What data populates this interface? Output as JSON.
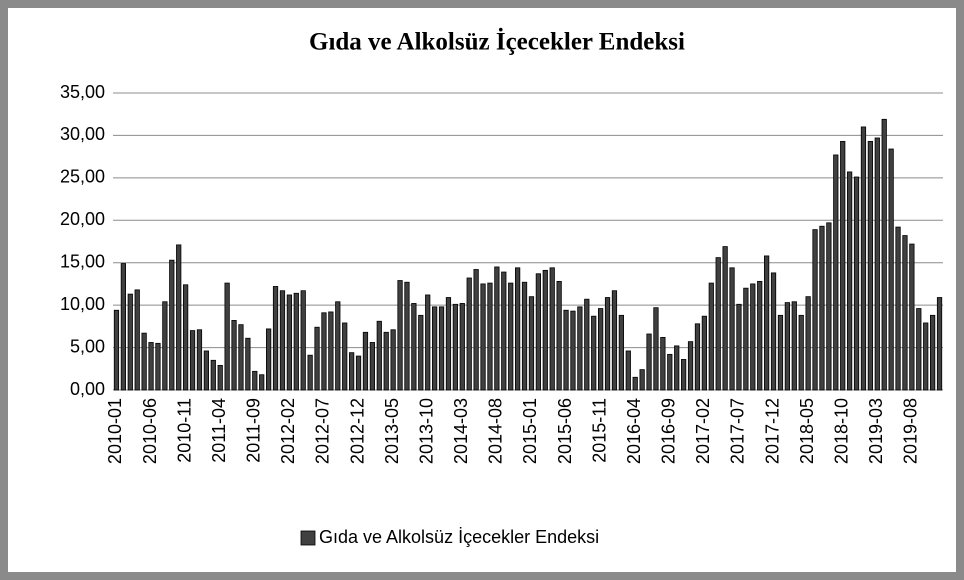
{
  "chart_data": {
    "type": "bar",
    "title": "Gıda ve Alkolsüz İçecekler Endeksi",
    "categories": [
      "2010-01",
      null,
      null,
      null,
      null,
      "2010-06",
      null,
      null,
      null,
      null,
      "2010-11",
      null,
      null,
      null,
      null,
      "2011-04",
      null,
      null,
      null,
      null,
      "2011-09",
      null,
      null,
      null,
      null,
      "2012-02",
      null,
      null,
      null,
      null,
      "2012-07",
      null,
      null,
      null,
      null,
      "2012-12",
      null,
      null,
      null,
      null,
      "2013-05",
      null,
      null,
      null,
      null,
      "2013-10",
      null,
      null,
      null,
      null,
      "2014-03",
      null,
      null,
      null,
      null,
      "2014-08",
      null,
      null,
      null,
      null,
      "2015-01",
      null,
      null,
      null,
      null,
      "2015-06",
      null,
      null,
      null,
      null,
      "2015-11",
      null,
      null,
      null,
      null,
      "2016-04",
      null,
      null,
      null,
      null,
      "2016-09",
      null,
      null,
      null,
      null,
      "2017-02",
      null,
      null,
      null,
      null,
      "2017-07",
      null,
      null,
      null,
      null,
      "2017-12",
      null,
      null,
      null,
      null,
      "2018-05",
      null,
      null,
      null,
      null,
      "2018-10",
      null,
      null,
      null,
      null,
      "2019-03",
      null,
      null,
      null,
      null,
      "2019-08",
      null,
      null,
      null,
      null
    ],
    "series": [
      {
        "name": "Gıda ve Alkolsüz İçecekler Endeksi",
        "color": "#404040",
        "values": [
          9.4,
          14.9,
          11.3,
          11.8,
          6.7,
          5.6,
          5.5,
          10.4,
          15.3,
          17.1,
          12.4,
          7.0,
          7.1,
          4.6,
          3.5,
          2.9,
          12.6,
          8.2,
          7.7,
          6.1,
          2.2,
          1.8,
          7.2,
          12.2,
          11.7,
          11.2,
          11.4,
          11.7,
          4.1,
          7.4,
          9.1,
          9.2,
          10.4,
          7.9,
          4.4,
          4.0,
          6.8,
          5.6,
          8.1,
          6.8,
          7.1,
          12.9,
          12.7,
          10.2,
          8.8,
          11.2,
          9.8,
          9.8,
          10.9,
          10.1,
          10.2,
          13.2,
          14.2,
          12.5,
          12.6,
          14.5,
          13.9,
          12.6,
          14.4,
          12.7,
          11.0,
          13.7,
          14.1,
          14.4,
          12.8,
          9.4,
          9.3,
          9.8,
          10.7,
          8.7,
          9.6,
          10.9,
          11.7,
          8.8,
          4.6,
          1.5,
          2.4,
          6.6,
          9.7,
          6.2,
          4.2,
          5.2,
          3.6,
          5.7,
          7.8,
          8.7,
          12.6,
          15.6,
          16.9,
          14.4,
          10.1,
          12.0,
          12.5,
          12.8,
          15.8,
          13.8,
          8.8,
          10.3,
          10.4,
          8.8,
          11.0,
          18.9,
          19.3,
          19.7,
          27.7,
          29.3,
          25.7,
          25.1,
          31.0,
          29.3,
          29.7,
          31.9,
          28.4,
          19.2,
          18.2,
          17.2,
          9.6,
          7.9,
          8.8,
          10.9
        ]
      }
    ],
    "ylim": [
      0,
      35
    ],
    "yticks": [
      {
        "value": 0,
        "label": "0,00"
      },
      {
        "value": 5,
        "label": "5,00"
      },
      {
        "value": 10,
        "label": "10,00"
      },
      {
        "value": 15,
        "label": "15,00"
      },
      {
        "value": 20,
        "label": "20,00"
      },
      {
        "value": 25,
        "label": "25,00"
      },
      {
        "value": 30,
        "label": "30,00"
      },
      {
        "value": 35,
        "label": "35,00"
      }
    ],
    "grid": true,
    "legend": "bottom"
  }
}
